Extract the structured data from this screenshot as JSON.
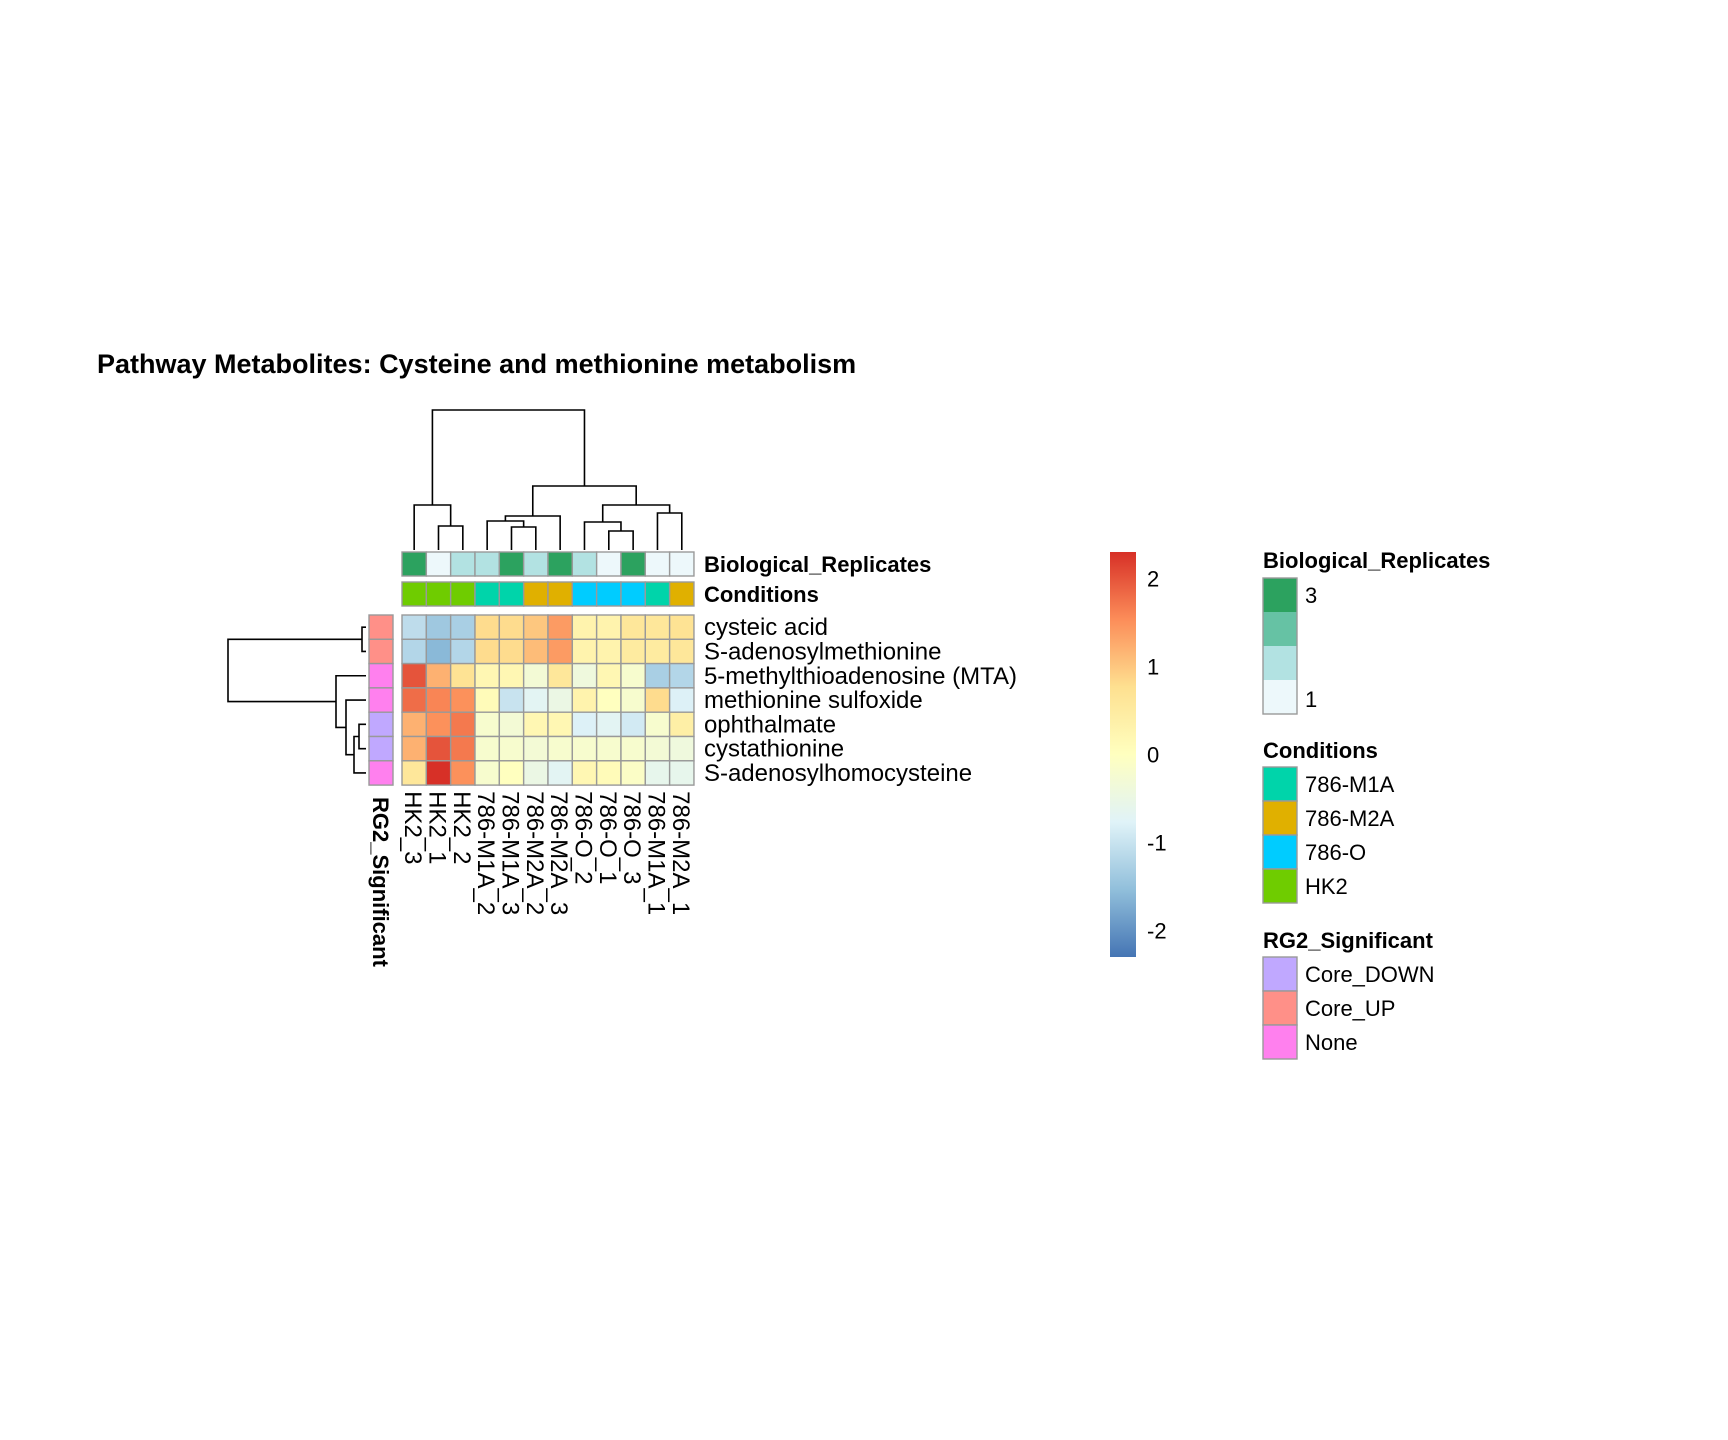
{
  "chart_data": {
    "type": "heatmap",
    "title": "Pathway  Metabolites:  Cysteine and methionine metabolism",
    "columns": [
      "HK2_3",
      "HK2_1",
      "HK2_2",
      "786-M1A_2",
      "786-M1A_3",
      "786-M2A_2",
      "786-M2A_3",
      "786-O_2",
      "786-O_1",
      "786-O_3",
      "786-M1A_1",
      "786-M2A_1"
    ],
    "rows": [
      "cysteic acid",
      "S-adenosylmethionine",
      "5-methylthioadenosine (MTA)",
      "methionine sulfoxide",
      "ophthalmate",
      "cystathionine",
      "S-adenosylhomocysteine"
    ],
    "values": [
      [
        -1.1,
        -1.4,
        -1.3,
        0.8,
        0.8,
        1.0,
        1.4,
        0.3,
        0.3,
        0.6,
        0.6,
        0.7
      ],
      [
        -1.2,
        -1.6,
        -1.2,
        0.8,
        0.8,
        1.1,
        1.4,
        0.3,
        0.3,
        0.5,
        0.5,
        0.6
      ],
      [
        2.0,
        1.2,
        0.7,
        0.2,
        0.2,
        -0.3,
        0.6,
        -0.4,
        0.2,
        -0.2,
        -1.3,
        -1.2
      ],
      [
        1.8,
        1.6,
        1.5,
        0.1,
        -1.0,
        -0.7,
        -0.5,
        0.3,
        0.0,
        -0.2,
        0.8,
        -0.8
      ],
      [
        1.2,
        1.5,
        1.7,
        -0.2,
        -0.3,
        0.2,
        0.2,
        -0.8,
        -0.7,
        -0.9,
        -0.2,
        0.4
      ],
      [
        1.2,
        2.0,
        1.7,
        -0.2,
        -0.2,
        -0.3,
        -0.2,
        -0.2,
        -0.2,
        -0.2,
        -0.3,
        -0.4
      ],
      [
        0.6,
        2.3,
        1.5,
        -0.2,
        0.0,
        -0.5,
        -0.7,
        0.2,
        0.1,
        -0.1,
        -0.6,
        -0.6
      ]
    ],
    "column_annotations": {
      "Biological_Replicates": [
        3,
        1,
        2,
        2,
        3,
        2,
        3,
        2,
        1,
        3,
        1,
        1
      ],
      "Conditions": [
        "HK2",
        "HK2",
        "HK2",
        "786-M1A",
        "786-M1A",
        "786-M2A",
        "786-M2A",
        "786-O",
        "786-O",
        "786-O",
        "786-M1A",
        "786-M2A"
      ]
    },
    "row_annotations": {
      "RG2_Significant": [
        "Core_UP",
        "Core_UP",
        "None",
        "None",
        "Core_DOWN",
        "Core_DOWN",
        "None"
      ]
    },
    "annotation_labels": {
      "column": [
        "Biological_Replicates",
        "Conditions"
      ],
      "row": "RG2_Significant"
    },
    "color_scale": {
      "ticks": [
        2,
        1,
        0,
        -1,
        -2
      ],
      "range": [
        -2.3,
        2.3
      ],
      "colors": [
        "#4575b4",
        "#91bfdb",
        "#e0f3f8",
        "#ffffbf",
        "#fee090",
        "#fc8d59",
        "#d73027"
      ]
    },
    "legends": [
      {
        "title": "Biological_Replicates",
        "type": "continuous",
        "labels": [
          "3",
          "1"
        ],
        "colors": [
          "#2ca25f",
          "#66c2a4",
          "#b2e2e2",
          "#edf8fb"
        ]
      },
      {
        "title": "Conditions",
        "items": [
          {
            "label": "786-M1A",
            "color": "#00d4aa"
          },
          {
            "label": "786-M2A",
            "color": "#e0b000"
          },
          {
            "label": "786-O",
            "color": "#00ccff"
          },
          {
            "label": "HK2",
            "color": "#6fcc00"
          }
        ]
      },
      {
        "title": "RG2_Significant",
        "items": [
          {
            "label": "Core_DOWN",
            "color": "#c0a8ff"
          },
          {
            "label": "Core_UP",
            "color": "#ff9088"
          },
          {
            "label": "None",
            "color": "#ff80ee"
          }
        ]
      }
    ]
  }
}
